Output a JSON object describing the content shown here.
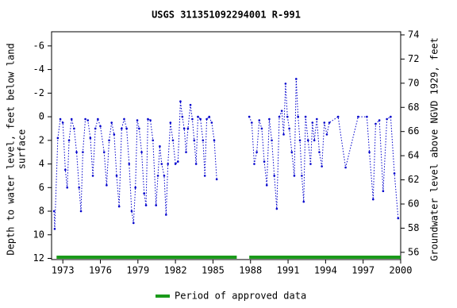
{
  "chart_data": {
    "type": "line",
    "title": "USGS 311351092294001 R-991",
    "ylabel": [
      "Depth to water level, feet below land",
      "surface"
    ],
    "y2label": "Groundwater level above NGVD 1929, feet",
    "xlim": [
      1972.1,
      2000
    ],
    "xticks": [
      1973,
      1976,
      1979,
      1982,
      1985,
      1988,
      1991,
      1994,
      1997,
      2000
    ],
    "ylim": [
      -7.2,
      12.1
    ],
    "yticks": [
      -6,
      -4,
      -2,
      0,
      2,
      4,
      6,
      8,
      10,
      12
    ],
    "y_inverted": true,
    "y2lim": [
      74.26,
      55.4
    ],
    "y2ticks": [
      56,
      58,
      60,
      62,
      64,
      66,
      68,
      70,
      72,
      74
    ],
    "series": [
      {
        "name": "Depth to water level",
        "color": "#0000cc",
        "x": [
          1972.3,
          1972.35,
          1972.6,
          1972.8,
          1973.0,
          1973.2,
          1973.35,
          1973.5,
          1973.7,
          1973.9,
          1974.1,
          1974.3,
          1974.45,
          1974.6,
          1974.8,
          1975.0,
          1975.2,
          1975.4,
          1975.6,
          1975.8,
          1976.0,
          1976.3,
          1976.5,
          1976.7,
          1976.9,
          1977.1,
          1977.3,
          1977.5,
          1977.7,
          1977.9,
          1978.1,
          1978.3,
          1978.5,
          1978.65,
          1978.8,
          1978.95,
          1979.1,
          1979.3,
          1979.5,
          1979.65,
          1979.8,
          1980.0,
          1980.2,
          1980.45,
          1980.6,
          1980.75,
          1980.9,
          1981.1,
          1981.25,
          1981.4,
          1981.6,
          1981.8,
          1982.0,
          1982.2,
          1982.4,
          1982.55,
          1982.7,
          1982.85,
          1983.0,
          1983.2,
          1983.35,
          1983.5,
          1983.65,
          1983.8,
          1984.0,
          1984.2,
          1984.35,
          1984.5,
          1984.7,
          1984.9,
          1985.1,
          1985.3,
          1986.5,
          1987.9,
          1988.1,
          1988.3,
          1988.5,
          1988.7,
          1988.9,
          1989.1,
          1989.3,
          1989.5,
          1989.7,
          1989.9,
          1990.1,
          1990.3,
          1990.5,
          1990.65,
          1990.8,
          1990.95,
          1991.1,
          1991.3,
          1991.5,
          1991.65,
          1991.8,
          1991.95,
          1992.1,
          1992.25,
          1992.4,
          1992.6,
          1992.8,
          1992.95,
          1993.1,
          1993.3,
          1993.5,
          1993.7,
          1993.9,
          1994.1,
          1994.3,
          1995.0,
          1995.6,
          1996.6,
          1997.3,
          1997.5,
          1997.8,
          1998.0,
          1998.3,
          1998.6,
          1998.9,
          1999.2,
          1999.5,
          1999.8
        ],
        "values": [
          8,
          9.5,
          1.8,
          0.2,
          0.5,
          4.5,
          6,
          2,
          0.2,
          1,
          3,
          6,
          8,
          3,
          0.2,
          0.3,
          1.8,
          5,
          1,
          0.2,
          0.8,
          3,
          5.8,
          2,
          0.5,
          1.5,
          5,
          7.6,
          1,
          0.2,
          1,
          4,
          8,
          9,
          6,
          0.3,
          1,
          3,
          6.5,
          7.5,
          0.2,
          0.3,
          2,
          7.5,
          5,
          2.5,
          4,
          5,
          8.3,
          4,
          0.5,
          2,
          4,
          3.8,
          -1.3,
          0,
          1,
          3,
          1,
          -1,
          0.2,
          2,
          4,
          0,
          0.2,
          2,
          5,
          0.2,
          0,
          0.5,
          2,
          5.3,
          null,
          0,
          0.5,
          4,
          3,
          0.3,
          1,
          3.8,
          5.8,
          0.2,
          2,
          5,
          7.8,
          0,
          -0.5,
          1.5,
          -2.8,
          0,
          1,
          3,
          5,
          -3.2,
          0,
          2,
          5,
          7.2,
          0,
          2,
          4,
          0.5,
          2,
          0.2,
          3,
          4.2,
          0.5,
          1.5,
          0.5,
          0,
          4.3,
          0,
          0,
          3,
          7,
          0.6,
          0.3,
          6.3,
          0.2,
          0,
          4.8,
          8.6
        ]
      }
    ],
    "approved_periods": {
      "name": "Period of approved data",
      "color": "#1a9a1a",
      "spans": [
        [
          1972.5,
          1986.9
        ],
        [
          1987.9,
          2000
        ]
      ]
    }
  }
}
